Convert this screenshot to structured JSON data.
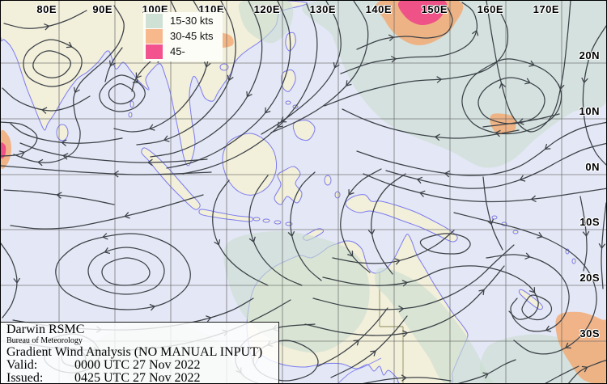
{
  "map": {
    "axis": {
      "lon_labels": [
        "80E",
        "90E",
        "100E",
        "110E",
        "120E",
        "130E",
        "140E",
        "150E",
        "160E",
        "170E"
      ],
      "lat_labels": [
        "20N",
        "10N",
        "0N",
        "10S",
        "20S",
        "30S"
      ]
    },
    "legend": {
      "items": [
        {
          "label": "15-30 kts",
          "color": "#cfe0d5"
        },
        {
          "label": "30-45 kts",
          "color": "#f7b88c"
        },
        {
          "label": "45-",
          "color": "#f2538e"
        }
      ]
    },
    "info_box": {
      "title": "Darwin RSMC",
      "org": "Bureau of Meteorology",
      "analysis": "Gradient Wind Analysis (NO MANUAL INPUT)",
      "valid_label": "Valid:",
      "valid_value": "0000 UTC 27 Nov 2022",
      "issued_label": "Issued:",
      "issued_value": "0425 UTC 27 Nov 2022"
    },
    "colors": {
      "sea": "#e4e7f5",
      "land": "#f2efda",
      "coastline": "#7b7bf0",
      "streamline": "#3b4147",
      "grid": "#666666",
      "green_shade": "#c9ddd0",
      "orange_shade": "#f4a86e",
      "pink_shade": "#ef4487"
    }
  }
}
